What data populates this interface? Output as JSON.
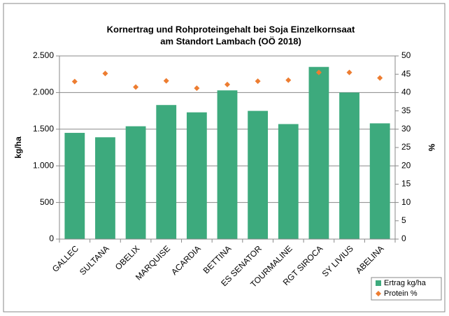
{
  "chart_data": {
    "type": "bar",
    "title": [
      "Kornertrag und Rohproteingehalt bei Soja Einzelkornsaat",
      "am Standort Lambach (OÖ 2018)"
    ],
    "y_label": "kg/ha",
    "y2_label": "%",
    "categories": [
      "GALLEC",
      "SULTANA",
      "OBELIX",
      "MARQUISE",
      "ACARDIA",
      "BETTINA",
      "ES SENATOR",
      "TOURMALINE",
      "RGT SIROCA",
      "SY LIVIUS",
      "ABELINA"
    ],
    "series": [
      {
        "name": "Ertrag kg/ha",
        "type": "bar",
        "color": "#3daa7d",
        "values": [
          1450,
          1390,
          1540,
          1830,
          1730,
          2030,
          1750,
          1570,
          2350,
          2000,
          1580
        ]
      },
      {
        "name": "Protein %",
        "type": "scatter",
        "axis": "y2",
        "color": "#ed7d31",
        "values": [
          43,
          45.2,
          41.5,
          43.2,
          41.2,
          42.2,
          43.1,
          43.4,
          45.5,
          45.5,
          44
        ]
      }
    ],
    "ylim": [
      0,
      2500
    ],
    "yticks": [
      0,
      500,
      {
        "value": 1000,
        "label": "1.000"
      },
      {
        "value": 1500,
        "label": "1.500"
      },
      {
        "value": 2000,
        "label": "2.000"
      },
      {
        "value": 2500,
        "label": "2.500"
      }
    ],
    "y2lim": [
      0,
      50
    ],
    "y2ticks": [
      0,
      5,
      10,
      15,
      20,
      25,
      30,
      35,
      40,
      45,
      50
    ],
    "grid": true,
    "legend": "bottom-right"
  }
}
